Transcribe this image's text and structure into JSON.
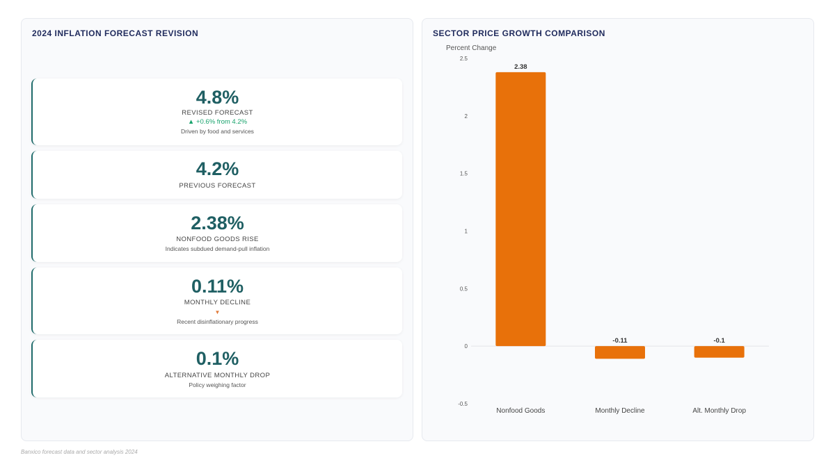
{
  "left_panel": {
    "title": "2024 INFLATION FORECAST REVISION",
    "cards": [
      {
        "value": "4.8%",
        "label": "REVISED FORECAST",
        "change": "▲ +0.6% from 4.2%",
        "note": "Driven by food and services"
      },
      {
        "value": "4.2%",
        "label": "PREVIOUS FORECAST"
      },
      {
        "value": "2.38%",
        "label": "NONFOOD GOODS RISE",
        "note": "Indicates subdued demand-pull inflation"
      },
      {
        "value": "0.11%",
        "label": "MONTHLY DECLINE",
        "arrow": "▼",
        "note": "Recent disinflationary progress"
      },
      {
        "value": "0.1%",
        "label": "ALTERNATIVE MONTHLY DROP",
        "note": "Policy weighing factor"
      }
    ]
  },
  "right_panel": {
    "title": "SECTOR PRICE GROWTH COMPARISON"
  },
  "chart_data": {
    "type": "bar",
    "title": "SECTOR PRICE GROWTH COMPARISON",
    "ylabel": "Percent Change",
    "xlabel": "",
    "categories": [
      "Nonfood Goods",
      "Monthly Decline",
      "Alt. Monthly Drop"
    ],
    "values": [
      2.38,
      -0.11,
      -0.1
    ],
    "value_labels": [
      "2.38",
      "-0.11",
      "-0.1"
    ],
    "ylim": [
      -0.5,
      2.5
    ],
    "yticks": [
      "-0.5",
      "0",
      "0.5",
      "1",
      "1.5",
      "2",
      "2.5"
    ],
    "grid": false,
    "legend": false,
    "bar_color": "#e8710a"
  },
  "footer": "Banxico forecast data and sector analysis 2024"
}
